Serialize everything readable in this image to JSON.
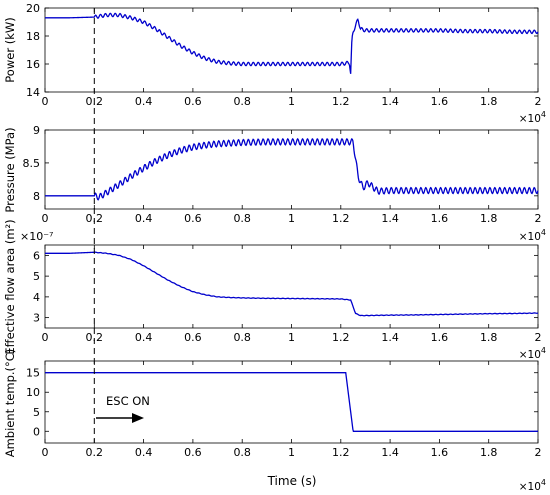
{
  "figure": {
    "xlabel": "Time (s)",
    "x_multiplier_base": "×10",
    "x_multiplier_exp": "4",
    "line_color": "#0000cc",
    "event_line_color": "#000000",
    "annotation": {
      "text": "ESC ON",
      "arrow": "right"
    }
  },
  "chart_data": [
    {
      "type": "line",
      "ylabel": "Power (kW)",
      "y_multiplier": "",
      "xlim": [
        0,
        2
      ],
      "ylim": [
        14,
        20
      ],
      "xticks": [
        "0",
        "0.2",
        "0.4",
        "0.6",
        "0.8",
        "1",
        "1.2",
        "1.4",
        "1.6",
        "1.8",
        "2"
      ],
      "yticks": [
        "14",
        "16",
        "18",
        "20"
      ],
      "event_x": 0.2,
      "series": [
        {
          "x": [
            0,
            0.1,
            0.2,
            0.25,
            0.3,
            0.35,
            0.4,
            0.45,
            0.5,
            0.55,
            0.6,
            0.65,
            0.7,
            0.75,
            0.8,
            0.9,
            1.0,
            1.1,
            1.2,
            1.22,
            1.235,
            1.24,
            1.245,
            1.25,
            1.27,
            1.28,
            1.3,
            1.35,
            1.4,
            1.5,
            1.6,
            1.7,
            1.8,
            1.9,
            2.0
          ],
          "y": [
            19.3,
            19.3,
            19.35,
            19.5,
            19.5,
            19.3,
            19.0,
            18.5,
            17.9,
            17.3,
            16.8,
            16.4,
            16.15,
            16.05,
            16.0,
            16.0,
            16.0,
            16.0,
            16.0,
            16.05,
            16.1,
            15.3,
            17.7,
            18.3,
            19.2,
            18.5,
            18.4,
            18.4,
            18.4,
            18.4,
            18.4,
            18.35,
            18.35,
            18.3,
            18.3
          ],
          "osc_start": 0.2,
          "osc_period": 0.02,
          "osc_amp": 0.12
        }
      ]
    },
    {
      "type": "line",
      "ylabel": "Pressure (MPa)",
      "y_multiplier": "",
      "xlim": [
        0,
        2
      ],
      "ylim": [
        7.8,
        9
      ],
      "xticks": [
        "0",
        "0.2",
        "0.4",
        "0.6",
        "0.8",
        "1",
        "1.2",
        "1.4",
        "1.6",
        "1.8",
        "2"
      ],
      "yticks": [
        "8",
        "8.5",
        "9"
      ],
      "event_x": 0.2,
      "series": [
        {
          "x": [
            0,
            0.1,
            0.2,
            0.22,
            0.25,
            0.3,
            0.35,
            0.4,
            0.45,
            0.5,
            0.55,
            0.6,
            0.65,
            0.7,
            0.8,
            0.9,
            1.0,
            1.1,
            1.2,
            1.25,
            1.27,
            1.29,
            1.31,
            1.35,
            1.4,
            1.5,
            1.6,
            1.7,
            1.8,
            1.9,
            2.0
          ],
          "y": [
            8.0,
            8.0,
            8.0,
            7.98,
            8.05,
            8.17,
            8.3,
            8.42,
            8.53,
            8.62,
            8.69,
            8.74,
            8.77,
            8.79,
            8.81,
            8.82,
            8.82,
            8.82,
            8.82,
            8.82,
            8.3,
            8.12,
            8.2,
            8.07,
            8.08,
            8.08,
            8.08,
            8.08,
            8.08,
            8.08,
            8.08
          ],
          "osc_start": 0.2,
          "osc_period": 0.02,
          "osc_amp": 0.045
        }
      ]
    },
    {
      "type": "line",
      "ylabel": "Effective flow area (m²)",
      "y_multiplier": "×10⁻⁷",
      "xlim": [
        0,
        2
      ],
      "ylim": [
        2.5,
        6.5
      ],
      "xticks": [
        "0",
        "0.2",
        "0.4",
        "0.6",
        "0.8",
        "1",
        "1.2",
        "1.4",
        "1.6",
        "1.8",
        "2"
      ],
      "yticks": [
        "3",
        "4",
        "5",
        "6"
      ],
      "event_x": 0.2,
      "series": [
        {
          "x": [
            0,
            0.1,
            0.2,
            0.25,
            0.3,
            0.35,
            0.4,
            0.45,
            0.5,
            0.55,
            0.6,
            0.65,
            0.7,
            0.75,
            0.8,
            0.9,
            1.0,
            1.1,
            1.2,
            1.24,
            1.26,
            1.28,
            1.3,
            1.4,
            1.5,
            1.6,
            1.7,
            1.8,
            1.9,
            2.0
          ],
          "y": [
            6.1,
            6.1,
            6.15,
            6.1,
            6.0,
            5.8,
            5.5,
            5.15,
            4.8,
            4.5,
            4.25,
            4.1,
            4.0,
            3.97,
            3.95,
            3.93,
            3.92,
            3.91,
            3.9,
            3.85,
            3.2,
            3.1,
            3.1,
            3.12,
            3.13,
            3.15,
            3.17,
            3.19,
            3.2,
            3.22
          ],
          "osc_start": 0.2,
          "osc_period": 0.02,
          "osc_amp": 0.01
        }
      ]
    },
    {
      "type": "line",
      "ylabel": "Ambient temp.(°C)",
      "y_multiplier": "",
      "xlim": [
        0,
        2
      ],
      "ylim": [
        -3,
        18
      ],
      "xticks": [
        "0",
        "0.2",
        "0.4",
        "0.6",
        "0.8",
        "1",
        "1.2",
        "1.4",
        "1.6",
        "1.8",
        "2"
      ],
      "yticks": [
        "0",
        "5",
        "10",
        "15"
      ],
      "event_x": 0.2,
      "series": [
        {
          "x": [
            0,
            0.5,
            1.0,
            1.22,
            1.25,
            1.5,
            2.0
          ],
          "y": [
            15,
            15,
            15,
            15,
            0,
            0,
            0
          ],
          "osc_start": 2.0,
          "osc_period": 0.02,
          "osc_amp": 0
        }
      ]
    }
  ]
}
